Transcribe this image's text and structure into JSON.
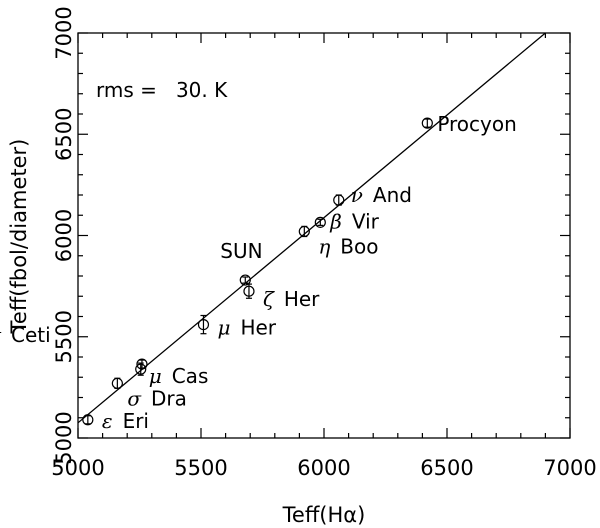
{
  "chart_data": {
    "type": "scatter",
    "xlabel": "Teff(Hα)",
    "ylabel": "Teff(fbol/diameter)",
    "xlim": [
      5000,
      7000
    ],
    "ylim": [
      5000,
      7000
    ],
    "x_ticks": [
      "5000",
      "5500",
      "6000",
      "6500",
      "7000"
    ],
    "y_ticks": [
      "5000",
      "5500",
      "6000",
      "6500",
      "7000"
    ],
    "annotation": "rms =   30. K",
    "grid": false,
    "fit_line": {
      "x": [
        5000,
        6900
      ],
      "y": [
        5075,
        7000
      ]
    },
    "points": [
      {
        "name": "ε Eri",
        "greek": "ε",
        "star": "Eri",
        "x": 5040,
        "y": 5090,
        "yerr": 20
      },
      {
        "name": "σ Dra",
        "greek": "σ",
        "star": "Dra",
        "x": 5160,
        "y": 5270,
        "yerr": 25
      },
      {
        "name": "μ Cas",
        "greek": "μ",
        "star": "Cas",
        "x": 5255,
        "y": 5340,
        "yerr": 30
      },
      {
        "name": "τ Ceti",
        "greek": "τ",
        "star": "Ceti",
        "x": 5260,
        "y": 5365,
        "yerr": 20
      },
      {
        "name": "μ Her",
        "greek": "μ",
        "star": "Her",
        "x": 5510,
        "y": 5560,
        "yerr": 45
      },
      {
        "name": "SUN",
        "greek": "",
        "star": "SUN",
        "x": 5680,
        "y": 5780,
        "yerr": 15
      },
      {
        "name": "ζ Her",
        "greek": "ζ",
        "star": "Her",
        "x": 5695,
        "y": 5725,
        "yerr": 35
      },
      {
        "name": "η Boo",
        "greek": "η",
        "star": "Boo",
        "x": 5920,
        "y": 6020,
        "yerr": 25
      },
      {
        "name": "β Vir",
        "greek": "β",
        "star": "Vir",
        "x": 5985,
        "y": 6065,
        "yerr": 15
      },
      {
        "name": "ν And",
        "greek": "ν",
        "star": "And",
        "x": 6060,
        "y": 6175,
        "yerr": 25
      },
      {
        "name": "Procyon",
        "greek": "",
        "star": "Procyon",
        "x": 6420,
        "y": 6555,
        "yerr": 20
      }
    ]
  }
}
